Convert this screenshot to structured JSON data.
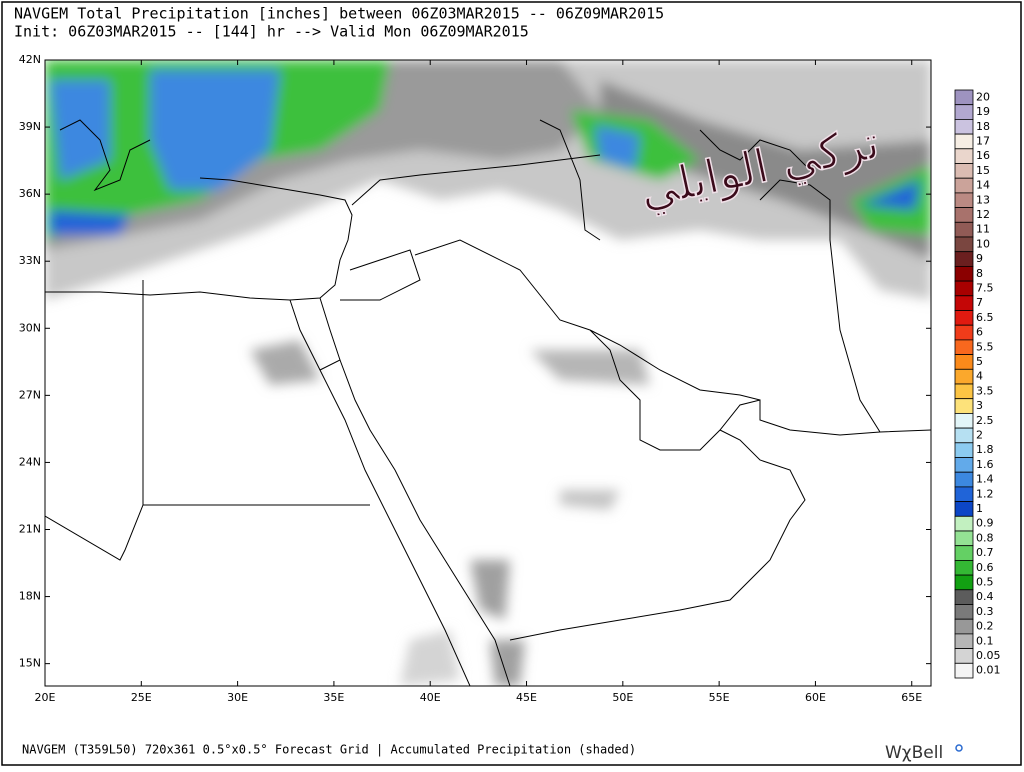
{
  "map": {
    "title": "NAVGEM Total Precipitation [inches] between 06Z03MAR2015 -- 06Z09MAR2015",
    "subtitle": "Init: 06Z03MAR2015 -- [144] hr --> Valid Mon 06Z09MAR2015",
    "xlim": [
      20,
      66
    ],
    "ylim": [
      14,
      42
    ],
    "xticks": [
      {
        "value": 20,
        "label": "20E"
      },
      {
        "value": 25,
        "label": "25E"
      },
      {
        "value": 30,
        "label": "30E"
      },
      {
        "value": 35,
        "label": "35E"
      },
      {
        "value": 40,
        "label": "40E"
      },
      {
        "value": 45,
        "label": "45E"
      },
      {
        "value": 50,
        "label": "50E"
      },
      {
        "value": 55,
        "label": "55E"
      },
      {
        "value": 60,
        "label": "60E"
      },
      {
        "value": 65,
        "label": "65E"
      }
    ],
    "yticks": [
      {
        "value": 15,
        "label": "15N"
      },
      {
        "value": 18,
        "label": "18N"
      },
      {
        "value": 21,
        "label": "21N"
      },
      {
        "value": 24,
        "label": "24N"
      },
      {
        "value": 27,
        "label": "27N"
      },
      {
        "value": 30,
        "label": "30N"
      },
      {
        "value": 33,
        "label": "33N"
      },
      {
        "value": 36,
        "label": "36N"
      },
      {
        "value": 39,
        "label": "39N"
      },
      {
        "value": 42,
        "label": "42N"
      }
    ]
  },
  "colorbar": {
    "levels": [
      20,
      19,
      18,
      17,
      16,
      15,
      14,
      13,
      12,
      11,
      10,
      9,
      8,
      7.5,
      7,
      6.5,
      6,
      5.5,
      5,
      4,
      3.5,
      3,
      2.5,
      2,
      1.8,
      1.6,
      1.4,
      1.2,
      1,
      0.9,
      0.8,
      0.7,
      0.6,
      0.5,
      0.4,
      0.3,
      0.2,
      0.1,
      0.05,
      0.01
    ],
    "colors": [
      "#9e93c0",
      "#b2a8d0",
      "#cbc3e0",
      "#f6eee4",
      "#ead6cc",
      "#dbbcb2",
      "#cba39a",
      "#bb8a83",
      "#a8726c",
      "#915b56",
      "#7a4640",
      "#6b1f1f",
      "#8b0000",
      "#a80000",
      "#c40606",
      "#e01a10",
      "#f03c1a",
      "#f8681e",
      "#fb8a1a",
      "#fba82c",
      "#fcc444",
      "#fde27a",
      "#e2f5f8",
      "#b6e0f2",
      "#8ccbf0",
      "#62aaea",
      "#3c88e0",
      "#2064d8",
      "#0c46c6",
      "#c2f0c0",
      "#94e294",
      "#64d064",
      "#34b834",
      "#12a012",
      "#5c5c5c",
      "#7a7a7a",
      "#989898",
      "#b6b6b6",
      "#d4d4d4",
      "#f4f4f4"
    ]
  },
  "footer": "NAVGEM (T359L50) 720x361 0.5°x0.5° Forecast Grid |  Accumulated Precipitation (shaded)",
  "logo": "WχBell",
  "watermark": "تركي الوايلي"
}
